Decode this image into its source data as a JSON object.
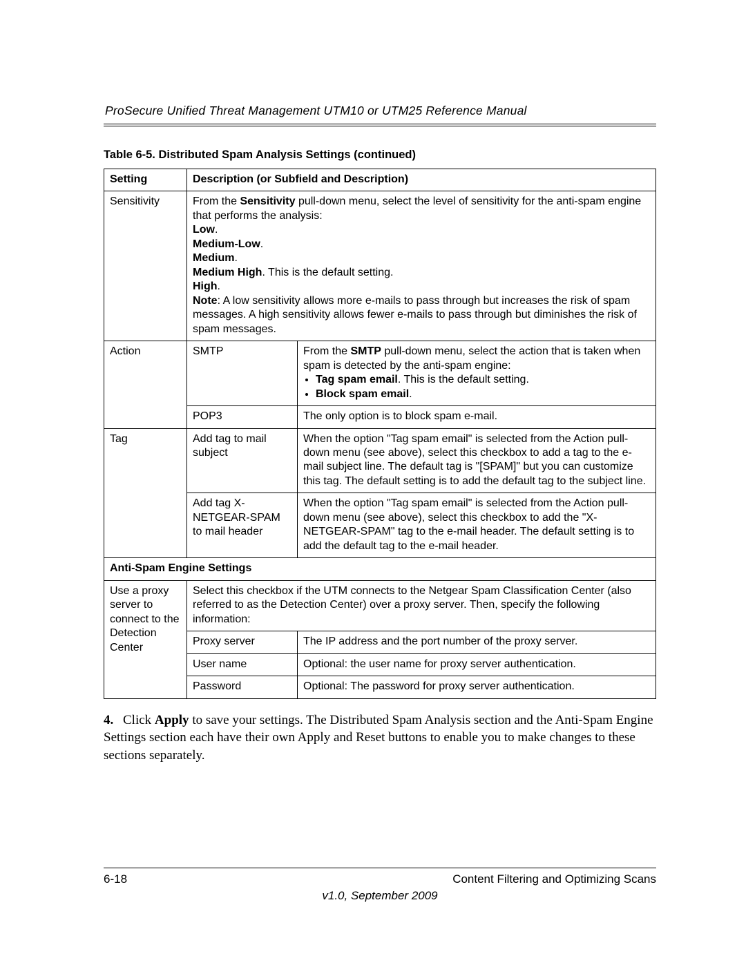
{
  "header": {
    "title": "ProSecure Unified Threat Management UTM10 or UTM25 Reference Manual"
  },
  "table": {
    "caption": "Table 6-5. Distributed Spam Analysis Settings (continued)",
    "head_setting": "Setting",
    "head_desc": "Description (or Subfield and Description)",
    "sensitivity": {
      "label": "Sensitivity",
      "p1a": "From the ",
      "p1b": "Sensitivity",
      "p1c": " pull-down menu, select the level of sensitivity for the anti-spam engine that performs the analysis:",
      "low": "Low",
      "medlow": "Medium-Low",
      "medium": "Medium",
      "medhigh_a": "Medium High",
      "medhigh_b": ". This is the default setting.",
      "high": "High",
      "note_a": "Note",
      "note_b": ": A low sensitivity allows more e-mails to pass through but increases the risk of spam messages. A high sensitivity allows fewer e-mails to pass through but diminishes the risk of spam messages."
    },
    "action": {
      "label": "Action",
      "smtp_label": "SMTP",
      "smtp_p1a": "From the ",
      "smtp_p1b": "SMTP",
      "smtp_p1c": " pull-down menu, select the action that is taken when spam is detected by the anti-spam engine:",
      "smtp_li1a": "Tag spam email",
      "smtp_li1b": ". This is the default setting.",
      "smtp_li2a": "Block spam email",
      "smtp_li2b": ".",
      "pop3_label": "POP3",
      "pop3_desc": "The only option is to block spam e-mail."
    },
    "tag": {
      "label": "Tag",
      "sub1_label": "Add tag to mail subject",
      "sub1_desc": "When the option \"Tag spam email\" is selected from the Action pull-down menu (see above), select this checkbox to add a tag to the e-mail subject line. The default tag is \"[SPAM]\" but you can customize this tag. The default setting is to add the default tag to the subject line.",
      "sub2_label": "Add tag X-NETGEAR-SPAM to mail header",
      "sub2_desc": "When the option \"Tag spam email\" is selected from the Action pull-down menu (see above), select this checkbox to add the \"X-NETGEAR-SPAM\" tag to the e-mail header. The default setting is to add the default tag to the e-mail header."
    },
    "section_antispam": "Anti-Spam Engine Settings",
    "proxy": {
      "label": "Use a proxy server to connect to the Detection Center",
      "merged_desc": "Select this checkbox if the UTM connects to the Netgear Spam Classification Center (also referred to as the Detection Center) over a proxy server. Then, specify the following information:",
      "proxy_server_label": "Proxy server",
      "proxy_server_desc": "The IP address and the port number of the proxy server.",
      "user_label": "User name",
      "user_desc": "Optional: the user name for proxy server authentication.",
      "pass_label": "Password",
      "pass_desc": "Optional: The password for proxy server authentication."
    }
  },
  "step": {
    "num": "4.",
    "apply": "Apply",
    "text_a": "Click ",
    "text_b": " to save your settings. The Distributed Spam Analysis section and the Anti-Spam Engine Settings section each have their own Apply and Reset buttons to enable you to make changes to these sections separately."
  },
  "footer": {
    "page_num": "6-18",
    "section": "Content Filtering and Optimizing Scans",
    "version": "v1.0, September 2009"
  }
}
